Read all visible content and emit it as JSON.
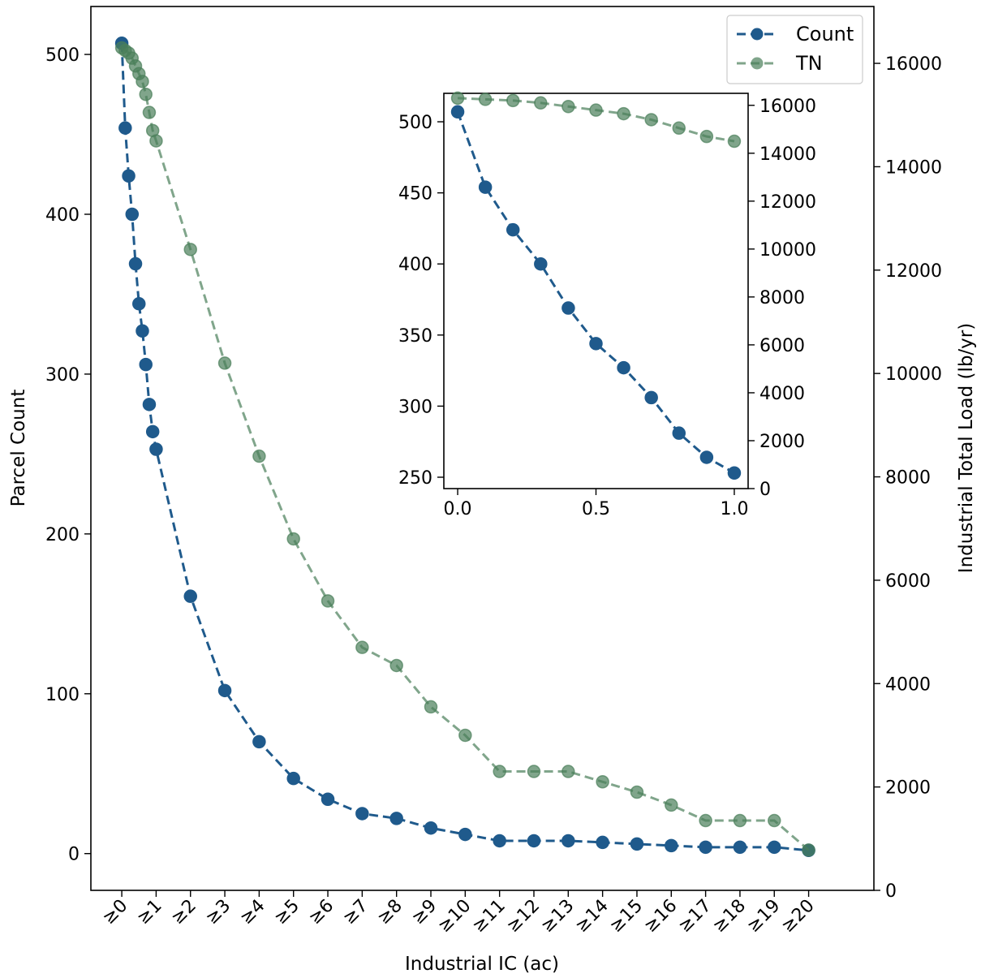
{
  "chart_data": {
    "type": "line",
    "xlabel": "Industrial IC (ac)",
    "ylabel": "Parcel Count",
    "y2label": "Industrial Total Load (lb/yr)",
    "x_tick_labels": [
      "≥0",
      "≥1",
      "≥2",
      "≥3",
      "≥4",
      "≥5",
      "≥6",
      "≥7",
      "≥8",
      "≥9",
      "≥10",
      "≥11",
      "≥12",
      "≥13",
      "≥14",
      "≥15",
      "≥16",
      "≥17",
      "≥18",
      "≥19",
      "≥20"
    ],
    "ylim": [
      -23,
      530
    ],
    "y_ticks": [
      0,
      100,
      200,
      300,
      400,
      500
    ],
    "y2lim": [
      0,
      17100
    ],
    "y2_ticks": [
      0,
      2000,
      4000,
      6000,
      8000,
      10000,
      12000,
      14000,
      16000
    ],
    "xlim": [
      -0.9,
      21.9
    ],
    "legend_position": "upper right",
    "series": [
      {
        "name": "Count",
        "axis": "left",
        "color": "#1f5a8c",
        "linestyle": "dashed",
        "x": [
          0,
          0.1,
          0.2,
          0.3,
          0.4,
          0.5,
          0.6,
          0.7,
          0.8,
          0.9,
          1,
          2,
          3,
          4,
          5,
          6,
          7,
          8,
          9,
          10,
          11,
          12,
          13,
          14,
          15,
          16,
          17,
          18,
          19,
          20
        ],
        "y": [
          507,
          454,
          424,
          400,
          369,
          344,
          327,
          306,
          281,
          264,
          253,
          161,
          102,
          70,
          47,
          34,
          25,
          22,
          16,
          12,
          8,
          8,
          8,
          7,
          6,
          5,
          4,
          4,
          4,
          2
        ]
      },
      {
        "name": "TN",
        "axis": "right",
        "color": "#4a7f5a",
        "linestyle": "dashed",
        "x": [
          0,
          0.1,
          0.2,
          0.3,
          0.4,
          0.5,
          0.6,
          0.7,
          0.8,
          0.9,
          1,
          2,
          3,
          4,
          5,
          6,
          7,
          8,
          9,
          10,
          11,
          12,
          13,
          14,
          15,
          16,
          17,
          18,
          19,
          20
        ],
        "y": [
          16300,
          16250,
          16200,
          16100,
          15950,
          15800,
          15650,
          15400,
          15050,
          14700,
          14500,
          12400,
          10200,
          8400,
          6800,
          5600,
          4700,
          4350,
          3550,
          3000,
          2300,
          2300,
          2300,
          2100,
          1900,
          1650,
          1350,
          1350,
          1350,
          780
        ]
      }
    ],
    "inset": {
      "xlim": [
        -0.05,
        1.05
      ],
      "x_ticks": [
        0.0,
        0.5,
        1.0
      ],
      "x_tick_labels": [
        "0.0",
        "0.5",
        "1.0"
      ],
      "ylim": [
        242,
        520
      ],
      "y_ticks": [
        250,
        300,
        350,
        400,
        450,
        500
      ],
      "y2lim": [
        0,
        16500
      ],
      "y2_ticks": [
        0,
        2000,
        4000,
        6000,
        8000,
        10000,
        12000,
        14000,
        16000
      ],
      "count_x": [
        0,
        0.1,
        0.2,
        0.3,
        0.4,
        0.5,
        0.6,
        0.7,
        0.8,
        0.9,
        1.0
      ],
      "count_y": [
        507,
        454,
        424,
        400,
        369,
        344,
        327,
        306,
        281,
        264,
        253
      ],
      "tn_x": [
        0,
        0.1,
        0.2,
        0.3,
        0.4,
        0.5,
        0.6,
        0.7,
        0.8,
        0.9,
        1.0
      ],
      "tn_y": [
        16300,
        16250,
        16200,
        16100,
        15950,
        15800,
        15650,
        15400,
        15050,
        14700,
        14500
      ]
    }
  }
}
